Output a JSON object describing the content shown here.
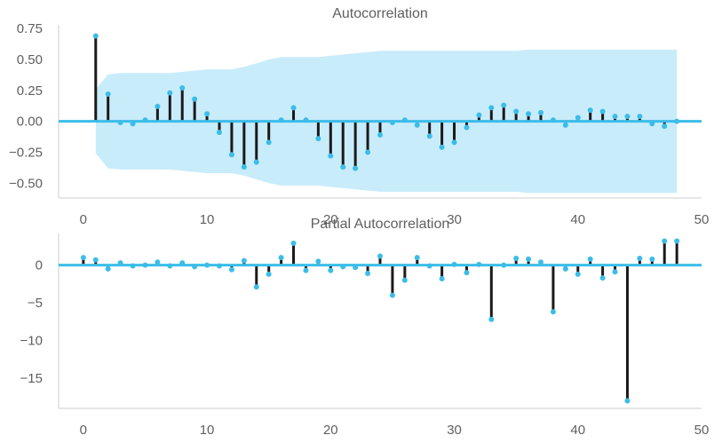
{
  "chart_data": [
    {
      "type": "stem",
      "title": "Autocorrelation",
      "xlim": [
        -2,
        50
      ],
      "ylim": [
        -0.62,
        0.78
      ],
      "xticks": [
        "0",
        "10",
        "20",
        "30",
        "40",
        "50"
      ],
      "yticks": [
        "0.75",
        "0.50",
        "0.25",
        "0.00",
        "−0.25",
        "−0.50"
      ],
      "x": [
        1,
        2,
        3,
        4,
        5,
        6,
        7,
        8,
        9,
        10,
        11,
        12,
        13,
        14,
        15,
        16,
        17,
        18,
        19,
        20,
        21,
        22,
        23,
        24,
        25,
        26,
        27,
        28,
        29,
        30,
        31,
        32,
        33,
        34,
        35,
        36,
        37,
        38,
        39,
        40,
        41,
        42,
        43,
        44,
        45,
        46,
        47,
        48
      ],
      "values": [
        0.69,
        0.22,
        -0.01,
        -0.02,
        0.01,
        0.12,
        0.23,
        0.27,
        0.18,
        0.06,
        -0.09,
        -0.27,
        -0.37,
        -0.33,
        -0.17,
        0.01,
        0.11,
        0.01,
        -0.14,
        -0.28,
        -0.37,
        -0.38,
        -0.25,
        -0.11,
        -0.01,
        0.01,
        -0.03,
        -0.12,
        -0.21,
        -0.17,
        -0.05,
        0.05,
        0.11,
        0.13,
        0.08,
        0.06,
        0.07,
        0.01,
        -0.03,
        0.03,
        0.09,
        0.08,
        0.04,
        0.04,
        0.04,
        -0.02,
        -0.04,
        0.0
      ],
      "confint_upper": [
        0.26,
        0.38,
        0.39,
        0.39,
        0.39,
        0.39,
        0.39,
        0.4,
        0.41,
        0.42,
        0.42,
        0.42,
        0.44,
        0.47,
        0.5,
        0.52,
        0.52,
        0.52,
        0.52,
        0.53,
        0.54,
        0.55,
        0.56,
        0.57,
        0.57,
        0.57,
        0.57,
        0.57,
        0.57,
        0.57,
        0.57,
        0.57,
        0.57,
        0.57,
        0.57,
        0.58,
        0.58,
        0.58,
        0.58,
        0.58,
        0.58,
        0.58,
        0.58,
        0.58,
        0.58,
        0.58,
        0.58,
        0.58
      ],
      "colors": {
        "stem": "#1a1a1a",
        "marker": "#3bbde8",
        "band": "#c9ecfb",
        "baseline": "#3bbde8"
      }
    },
    {
      "type": "stem",
      "title": "Partial Autocorrelation",
      "xlim": [
        -2,
        50
      ],
      "ylim": [
        -19,
        4.2
      ],
      "xticks": [
        "0",
        "10",
        "20",
        "30",
        "40",
        "50"
      ],
      "yticks": [
        "0",
        "−5",
        "−10",
        "−15"
      ],
      "x": [
        0,
        1,
        2,
        3,
        4,
        5,
        6,
        7,
        8,
        9,
        10,
        11,
        12,
        13,
        14,
        15,
        16,
        17,
        18,
        19,
        20,
        21,
        22,
        23,
        24,
        25,
        26,
        27,
        28,
        29,
        30,
        31,
        32,
        33,
        34,
        35,
        36,
        37,
        38,
        39,
        40,
        41,
        42,
        43,
        44,
        45,
        46,
        47,
        48
      ],
      "values": [
        1.0,
        0.69,
        -0.5,
        0.3,
        -0.1,
        0.0,
        0.4,
        -0.1,
        0.3,
        -0.2,
        0.0,
        -0.1,
        -0.6,
        0.6,
        -2.9,
        -1.2,
        1.0,
        2.9,
        -0.7,
        0.5,
        -0.7,
        -0.2,
        -0.3,
        -1.1,
        1.2,
        -4.0,
        -2.0,
        1.0,
        -0.1,
        -1.8,
        0.1,
        -1.0,
        0.1,
        -7.2,
        0.0,
        0.9,
        0.8,
        0.4,
        -6.2,
        -0.5,
        -1.2,
        0.8,
        -1.7,
        -0.9,
        -18.0,
        0.9,
        0.8,
        3.2,
        3.2
      ],
      "colors": {
        "stem": "#1a1a1a",
        "marker": "#3bbde8",
        "baseline": "#3bbde8"
      }
    }
  ]
}
